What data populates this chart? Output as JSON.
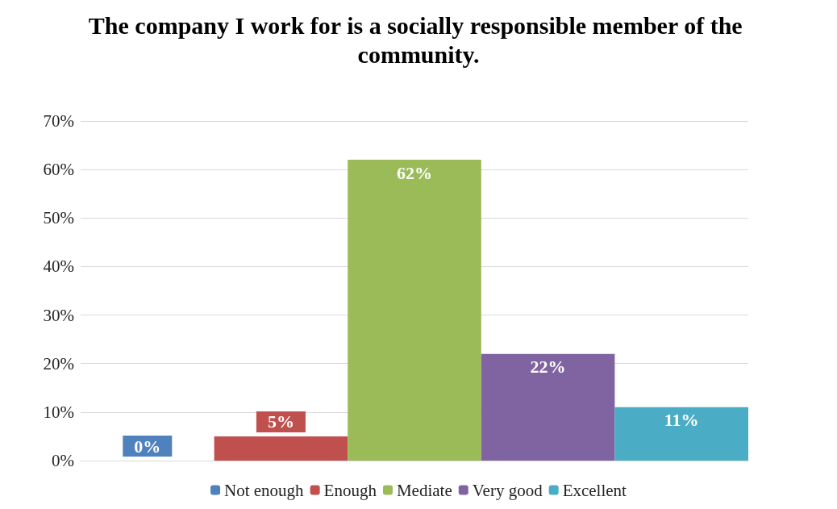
{
  "chart_data": {
    "type": "bar",
    "title": "The company I work for is a socially responsible member of the community.",
    "categories": [
      null,
      null,
      null,
      null,
      null
    ],
    "series": [
      {
        "name": "Not enough",
        "color": "#4f81bd",
        "values": [
          0,
          null,
          null,
          null,
          null
        ],
        "value_labels": [
          "0%",
          null,
          null,
          null,
          null
        ]
      },
      {
        "name": "Enough",
        "color": "#c0504d",
        "values": [
          null,
          5,
          null,
          null,
          null
        ],
        "value_labels": [
          null,
          "5%",
          null,
          null,
          null
        ]
      },
      {
        "name": "Mediate",
        "color": "#9bbb59",
        "values": [
          null,
          null,
          62,
          null,
          null
        ],
        "value_labels": [
          null,
          null,
          "62%",
          null,
          null
        ]
      },
      {
        "name": "Very good",
        "color": "#8064a2",
        "values": [
          null,
          null,
          null,
          22,
          null
        ],
        "value_labels": [
          null,
          null,
          null,
          "22%",
          null
        ]
      },
      {
        "name": "Excellent",
        "color": "#4bacc6",
        "values": [
          null,
          null,
          null,
          null,
          11
        ],
        "value_labels": [
          null,
          null,
          null,
          null,
          "11%"
        ]
      }
    ],
    "ylim": [
      0,
      70
    ],
    "yticks": [
      {
        "value": 0,
        "label": "0%"
      },
      {
        "value": 10,
        "label": "10%"
      },
      {
        "value": 20,
        "label": "20%"
      },
      {
        "value": 30,
        "label": "30%"
      },
      {
        "value": 40,
        "label": "40%"
      },
      {
        "value": 50,
        "label": "50%"
      },
      {
        "value": 60,
        "label": "60%"
      },
      {
        "value": 70,
        "label": "70%"
      }
    ],
    "grid": "y",
    "legend": "bottom",
    "tick_labels": "y",
    "stacked": true
  }
}
